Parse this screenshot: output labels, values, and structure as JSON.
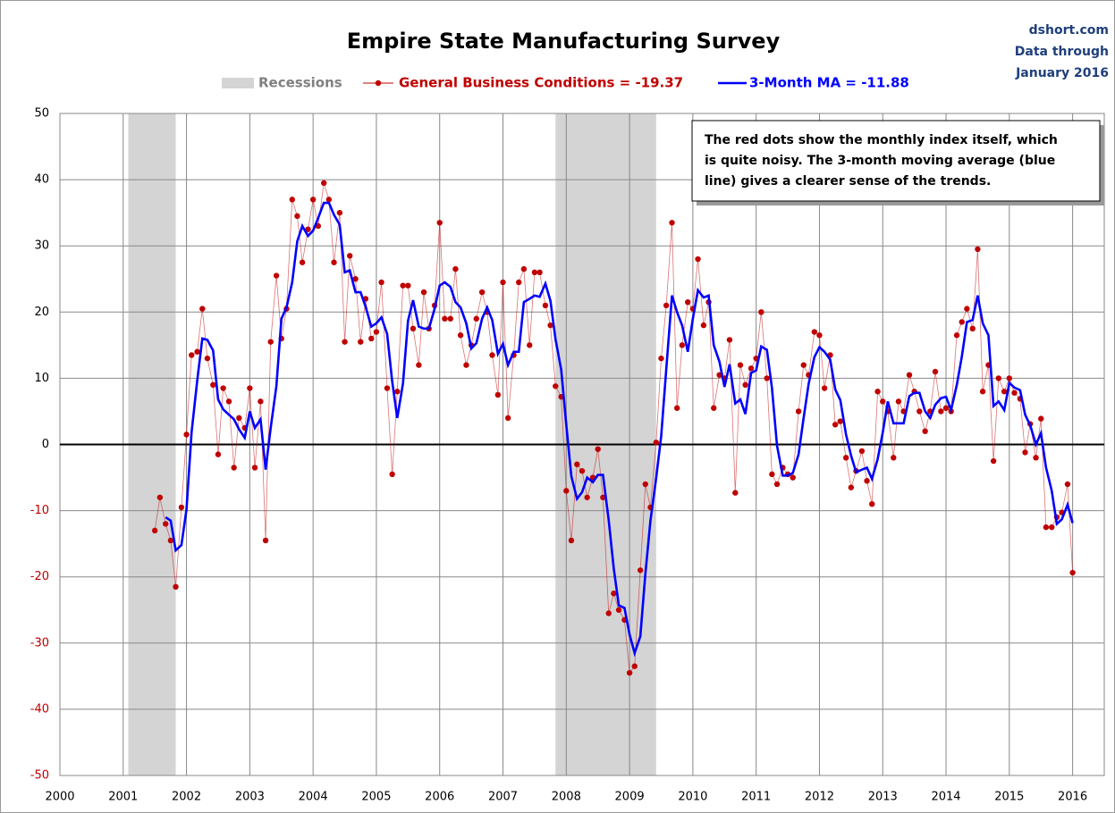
{
  "chart_data": {
    "type": "line",
    "title": "Empire State Manufacturing Survey",
    "source": [
      "dshort.com",
      "Data through",
      "January 2016"
    ],
    "annotation": [
      "The red dots show the monthly  index itself, which",
      "is quite noisy. The 3-month moving average (blue",
      "line) gives a clearer sense of the trends."
    ],
    "recession_label": "Recessions",
    "recession_color": "#d4d4d4",
    "recessions": [
      [
        2001.08,
        2001.83
      ],
      [
        2007.83,
        2009.42
      ]
    ],
    "x": [
      2001.5,
      2001.58,
      2001.67,
      2001.75,
      2001.83,
      2001.92,
      2002,
      2002.08,
      2002.17,
      2002.25,
      2002.33,
      2002.42,
      2002.5,
      2002.58,
      2002.67,
      2002.75,
      2002.83,
      2002.92,
      2003,
      2003.08,
      2003.17,
      2003.25,
      2003.33,
      2003.42,
      2003.5,
      2003.58,
      2003.67,
      2003.75,
      2003.83,
      2003.92,
      2004,
      2004.08,
      2004.17,
      2004.25,
      2004.33,
      2004.42,
      2004.5,
      2004.58,
      2004.67,
      2004.75,
      2004.83,
      2004.92,
      2005,
      2005.08,
      2005.17,
      2005.25,
      2005.33,
      2005.42,
      2005.5,
      2005.58,
      2005.67,
      2005.75,
      2005.83,
      2005.92,
      2006,
      2006.08,
      2006.17,
      2006.25,
      2006.33,
      2006.42,
      2006.5,
      2006.58,
      2006.67,
      2006.75,
      2006.83,
      2006.92,
      2007,
      2007.08,
      2007.17,
      2007.25,
      2007.33,
      2007.42,
      2007.5,
      2007.58,
      2007.67,
      2007.75,
      2007.83,
      2007.92,
      2008,
      2008.08,
      2008.17,
      2008.25,
      2008.33,
      2008.42,
      2008.5,
      2008.58,
      2008.67,
      2008.75,
      2008.83,
      2008.92,
      2009,
      2009.08,
      2009.17,
      2009.25,
      2009.33,
      2009.42,
      2009.5,
      2009.58,
      2009.67,
      2009.75,
      2009.83,
      2009.92,
      2010,
      2010.08,
      2010.17,
      2010.25,
      2010.33,
      2010.42,
      2010.5,
      2010.58,
      2010.67,
      2010.75,
      2010.83,
      2010.92,
      2011,
      2011.08,
      2011.17,
      2011.25,
      2011.33,
      2011.42,
      2011.5,
      2011.58,
      2011.67,
      2011.75,
      2011.83,
      2011.92,
      2012,
      2012.08,
      2012.17,
      2012.25,
      2012.33,
      2012.42,
      2012.5,
      2012.58,
      2012.67,
      2012.75,
      2012.83,
      2012.92,
      2013,
      2013.08,
      2013.17,
      2013.25,
      2013.33,
      2013.42,
      2013.5,
      2013.58,
      2013.67,
      2013.75,
      2013.83,
      2013.92,
      2014,
      2014.08,
      2014.17,
      2014.25,
      2014.33,
      2014.42,
      2014.5,
      2014.58,
      2014.67,
      2014.75,
      2014.83,
      2014.92,
      2015,
      2015.08,
      2015.17,
      2015.25,
      2015.33,
      2015.42,
      2015.5,
      2015.58,
      2015.67,
      2015.75,
      2015.83,
      2015.92,
      2016
    ],
    "series": [
      {
        "name": "General Business Conditions = -19.37",
        "color": "#c00000",
        "values": [
          -13,
          -8,
          -12,
          -14.5,
          -21.5,
          -9.5,
          1.5,
          13.5,
          14,
          20.5,
          13,
          9,
          -1.5,
          8.5,
          6.5,
          -3.5,
          4,
          2.5,
          8.5,
          -3.5,
          6.5,
          -14.5,
          15.5,
          25.5,
          16,
          20.5,
          37,
          34.5,
          27.5,
          32.5,
          37,
          33,
          39.5,
          37,
          27.5,
          35,
          15.5,
          28.5,
          25,
          15.5,
          22,
          16,
          17,
          24.5,
          8.5,
          -4.5,
          8,
          24,
          24,
          17.5,
          12,
          23,
          17.5,
          21,
          33.5,
          19,
          19,
          26.5,
          16.5,
          12,
          15,
          19,
          23,
          20,
          13.5,
          7.5,
          24.5,
          4,
          13.5,
          24.5,
          26.5,
          15,
          26,
          26,
          21,
          18,
          8.8,
          7.2,
          -7,
          -14.5,
          -3,
          -4,
          -8,
          -5,
          -0.7,
          -8,
          -25.5,
          -22.5,
          -25,
          -26.5,
          -34.5,
          -33.5,
          -19,
          -6,
          -9.5,
          0.3,
          13,
          21,
          33.5,
          5.5,
          15,
          21.5,
          20.5,
          28,
          18,
          21.5,
          5.5,
          10.5,
          10,
          15.8,
          -7.3,
          12,
          9,
          11.5,
          13,
          20,
          10,
          -4.5,
          -6,
          -3.5,
          -4.5,
          -5,
          5,
          12,
          10.5,
          17,
          16.5,
          8.5,
          13.5,
          3,
          3.5,
          -2,
          -6.5,
          -4,
          -1,
          -5.5,
          -9,
          8,
          6.5,
          5,
          -2,
          6.5,
          5,
          10.5,
          8,
          5,
          2,
          5,
          11,
          5,
          5.5,
          5,
          16.5,
          18.5,
          20.5,
          17.5,
          29.5,
          8,
          12,
          -2.5,
          10,
          8,
          10,
          7.8,
          6.9,
          -1.2,
          3.1,
          -2,
          3.9,
          -12.5,
          -12.5,
          -11,
          -10.27,
          -6,
          -19.37
        ]
      },
      {
        "name": "3-Month MA = -11.88",
        "color": "#0000ff",
        "values": [
          null,
          null,
          -11,
          -11.5,
          -16,
          -15.2,
          -9.8,
          1.8,
          9.7,
          16,
          15.8,
          14.2,
          6.8,
          5.3,
          4.5,
          3.8,
          2.3,
          1,
          5,
          2.5,
          3.8,
          -3.8,
          2.5,
          8.8,
          19,
          20.7,
          24.5,
          30.7,
          33,
          31.5,
          32.3,
          34.2,
          36.5,
          36.5,
          34.7,
          33.2,
          26,
          26.3,
          23,
          23,
          20.8,
          17.8,
          18.3,
          19.2,
          16.7,
          9.5,
          4,
          9.2,
          18.7,
          21.8,
          17.8,
          17.5,
          17.5,
          20.5,
          24,
          24.5,
          23.8,
          21.5,
          20.7,
          18.3,
          14.5,
          15.3,
          19,
          20.7,
          18.8,
          13.7,
          15.2,
          12,
          14,
          14,
          21.5,
          22,
          22.5,
          22.3,
          24.3,
          21.7,
          15.9,
          11.3,
          3,
          -4.8,
          -8.2,
          -7.2,
          -5,
          -5.7,
          -4.6,
          -4.6,
          -11.4,
          -18.7,
          -24.3,
          -24.7,
          -28.7,
          -31.5,
          -29,
          -19.5,
          -11.5,
          -5.1,
          1.3,
          11.4,
          22.5,
          20,
          18,
          14,
          19,
          23.3,
          22.2,
          22.5,
          15,
          12.5,
          8.7,
          12.1,
          6.2,
          6.8,
          4.6,
          10.8,
          11.2,
          14.8,
          14.3,
          8.5,
          -0.2,
          -4.7,
          -4.7,
          -4.3,
          -1.5,
          4,
          9.2,
          13.2,
          14.7,
          14,
          12.8,
          8.3,
          6.7,
          1.5,
          -1.7,
          -4.2,
          -3.8,
          -3.5,
          -5.2,
          -2.2,
          1.8,
          6.5,
          3.2,
          3.2,
          3.2,
          7.3,
          7.8,
          7.8,
          5,
          4,
          6,
          7,
          7.2,
          5.2,
          9,
          13.3,
          18.5,
          18.8,
          22.5,
          18.3,
          16.5,
          5.8,
          6.5,
          5.2,
          9.3,
          8.6,
          8.2,
          4.5,
          2.9,
          0,
          1.7,
          -3.5,
          -7,
          -12,
          -11.3,
          -9.1,
          -11.88
        ]
      }
    ],
    "xlim": [
      2000,
      2016.5
    ],
    "xticks": [
      2000,
      2001,
      2002,
      2003,
      2004,
      2005,
      2006,
      2007,
      2008,
      2009,
      2010,
      2011,
      2012,
      2013,
      2014,
      2015,
      2016
    ],
    "ylim": [
      -50,
      50
    ],
    "yticks": [
      -50,
      -40,
      -30,
      -20,
      -10,
      0,
      10,
      20,
      30,
      40,
      50
    ],
    "grid": true
  }
}
